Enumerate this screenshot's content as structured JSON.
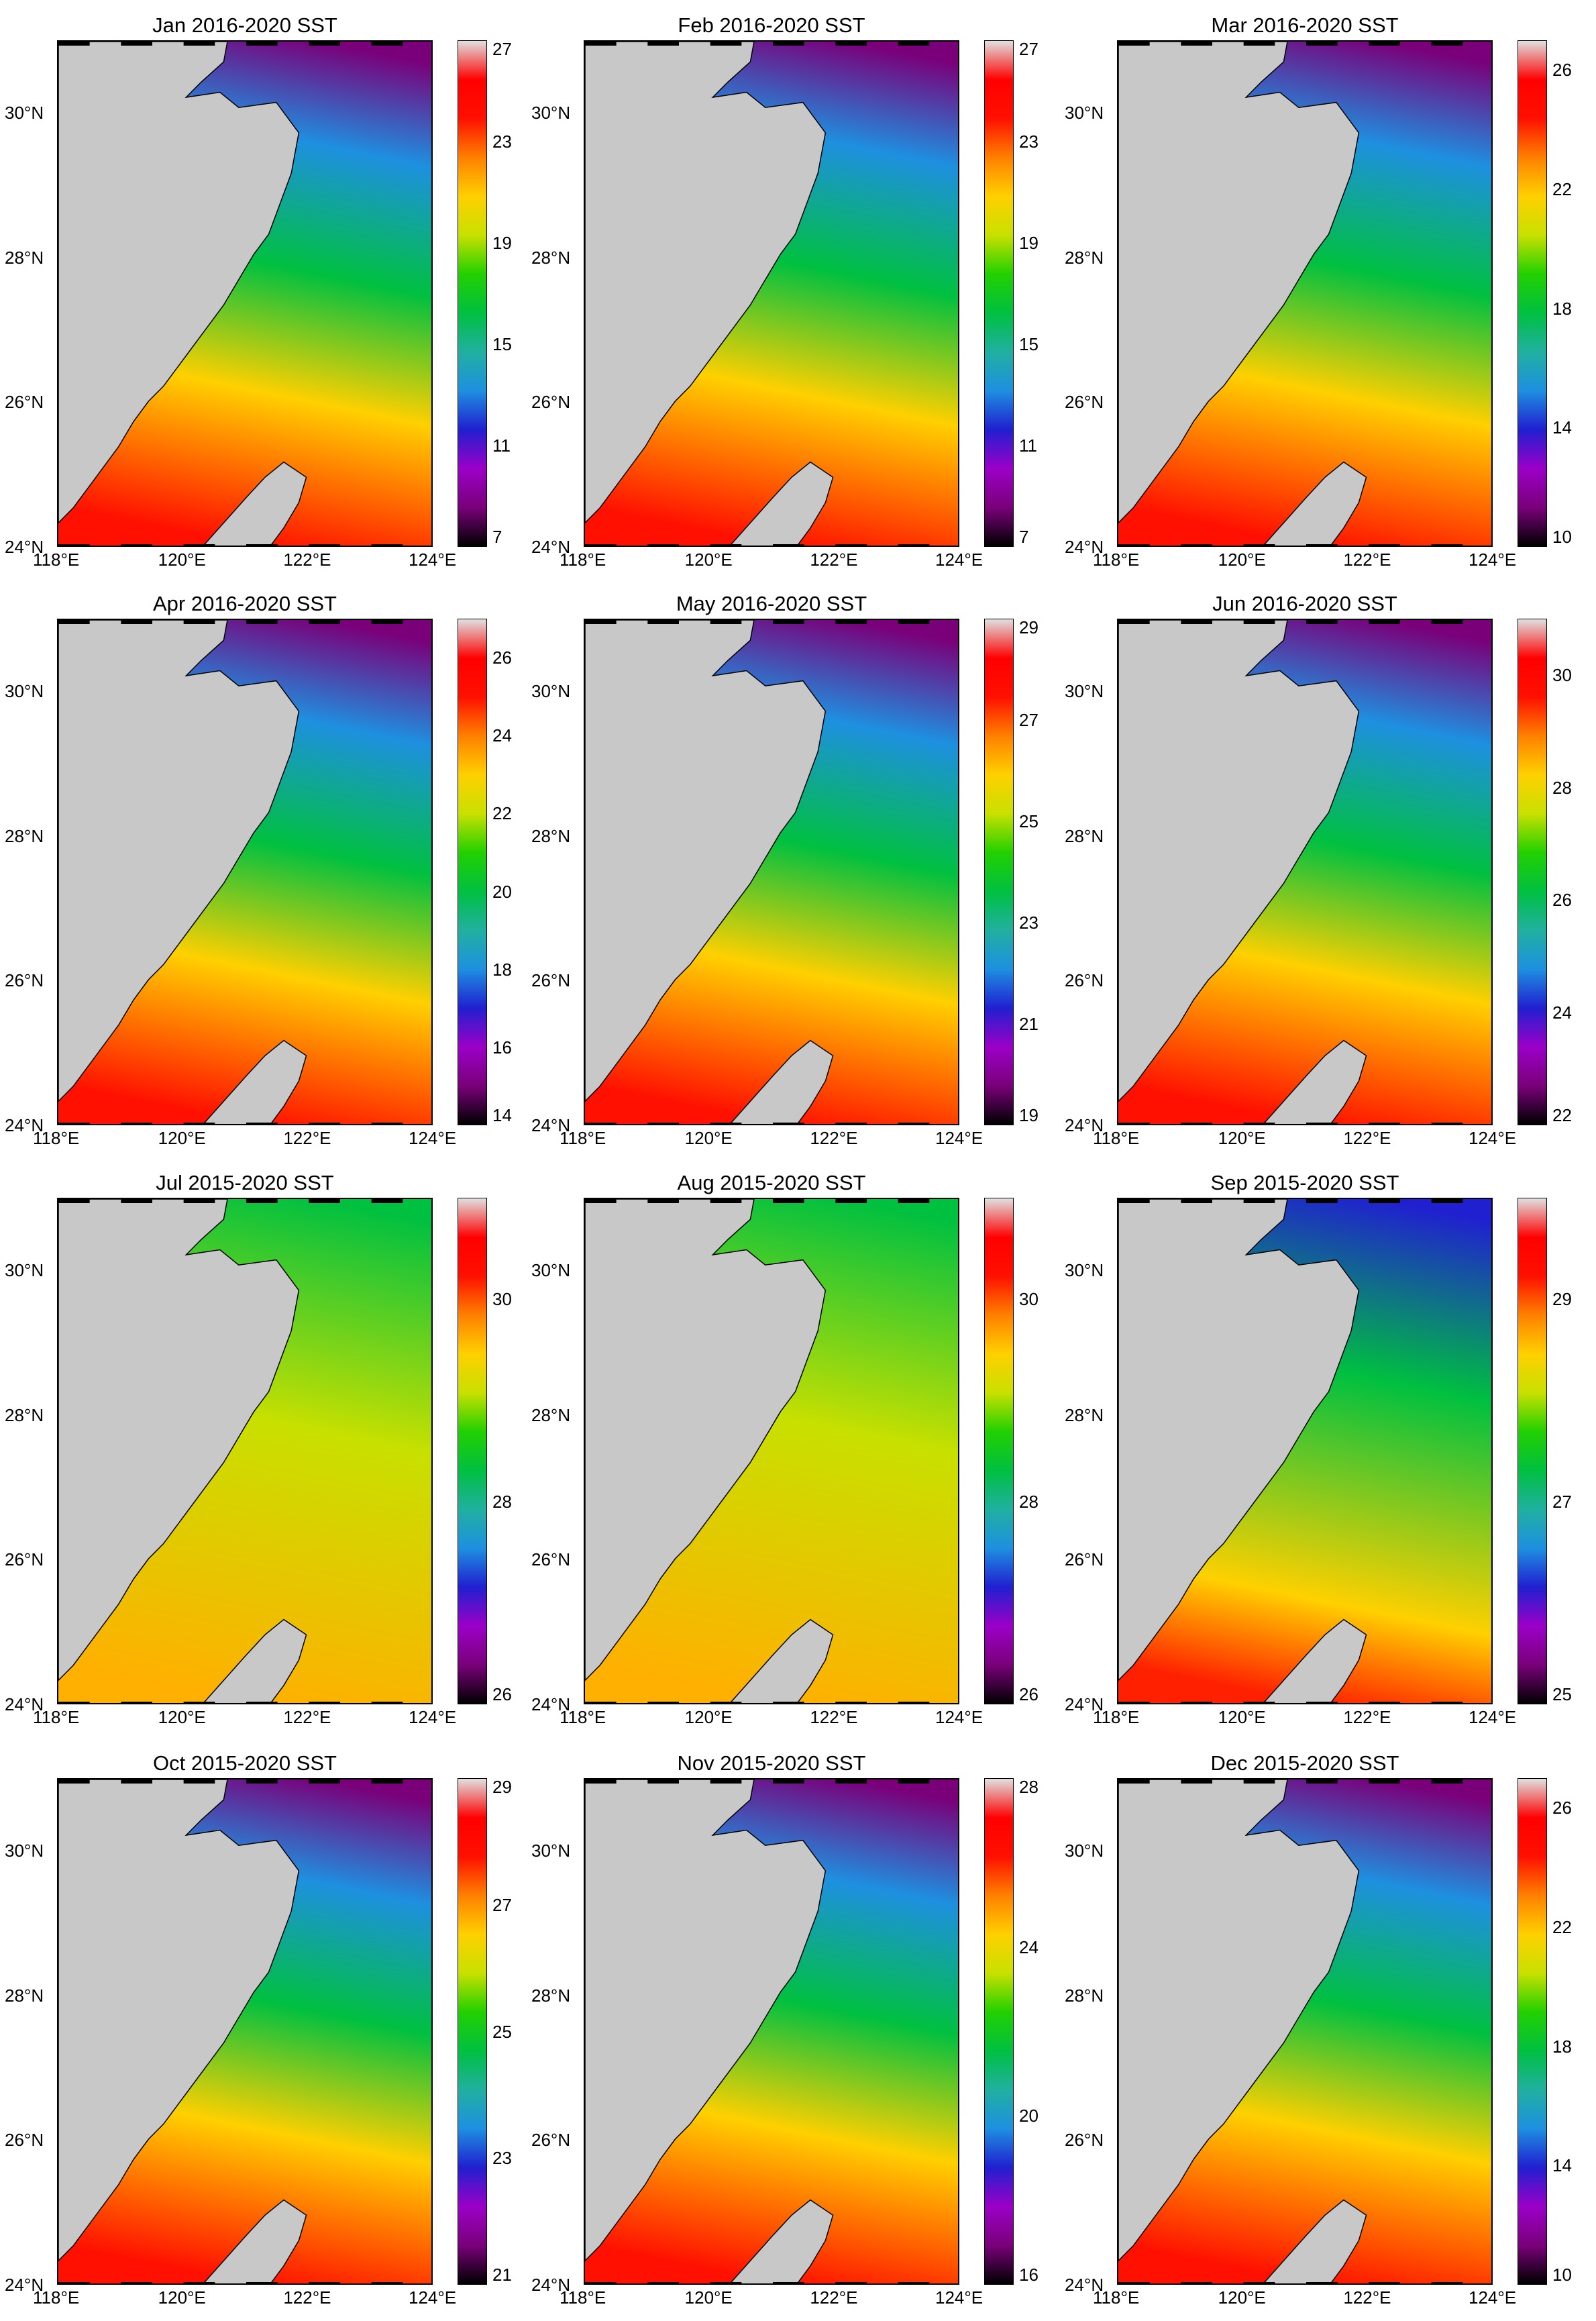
{
  "figure": {
    "panels": [
      {
        "title": "Jan 2016-2020 SST",
        "colorbar_ticks": [
          "7",
          "11",
          "15",
          "19",
          "23",
          "27"
        ],
        "range": [
          7,
          27
        ]
      },
      {
        "title": "Feb 2016-2020 SST",
        "colorbar_ticks": [
          "7",
          "11",
          "15",
          "19",
          "23",
          "27"
        ],
        "range": [
          7,
          27
        ]
      },
      {
        "title": "Mar 2016-2020 SST",
        "colorbar_ticks": [
          "10",
          "14",
          "18",
          "22",
          "26"
        ],
        "range": [
          10,
          27
        ]
      },
      {
        "title": "Apr 2016-2020 SST",
        "colorbar_ticks": [
          "14",
          "16",
          "18",
          "20",
          "22",
          "24",
          "26"
        ],
        "range": [
          14,
          27
        ]
      },
      {
        "title": "May 2016-2020 SST",
        "colorbar_ticks": [
          "19",
          "21",
          "23",
          "25",
          "27",
          "29"
        ],
        "range": [
          19,
          29
        ]
      },
      {
        "title": "Jun 2016-2020 SST",
        "colorbar_ticks": [
          "22",
          "24",
          "26",
          "28",
          "30"
        ],
        "range": [
          22,
          31
        ]
      },
      {
        "title": "Jul 2015-2020 SST",
        "colorbar_ticks": [
          "26",
          "28",
          "30"
        ],
        "range": [
          26,
          31
        ]
      },
      {
        "title": "Aug 2015-2020 SST",
        "colorbar_ticks": [
          "26",
          "28",
          "30"
        ],
        "range": [
          26,
          31
        ]
      },
      {
        "title": "Sep 2015-2020 SST",
        "colorbar_ticks": [
          "25",
          "27",
          "29"
        ],
        "range": [
          25,
          30
        ]
      },
      {
        "title": "Oct 2015-2020 SST",
        "colorbar_ticks": [
          "21",
          "23",
          "25",
          "27",
          "29"
        ],
        "range": [
          21,
          29
        ]
      },
      {
        "title": "Nov 2015-2020 SST",
        "colorbar_ticks": [
          "16",
          "20",
          "24",
          "28"
        ],
        "range": [
          16,
          28
        ]
      },
      {
        "title": "Dec 2015-2020 SST",
        "colorbar_ticks": [
          "10",
          "14",
          "18",
          "22",
          "26"
        ],
        "range": [
          10,
          27
        ]
      }
    ],
    "lat_ticks": [
      "24°N",
      "26°N",
      "28°N",
      "30°N"
    ],
    "lon_ticks": [
      "118°E",
      "120°E",
      "122°E",
      "124°E"
    ],
    "land_color": "#c8c8c8",
    "colormap": [
      "#000000",
      "#7a007a",
      "#9b00c8",
      "#2020d0",
      "#1e90e0",
      "#20b0a0",
      "#00c040",
      "#22d000",
      "#c8e000",
      "#ffd000",
      "#ff8000",
      "#ff1000",
      "#ff0000",
      "#e0e0e0"
    ]
  }
}
